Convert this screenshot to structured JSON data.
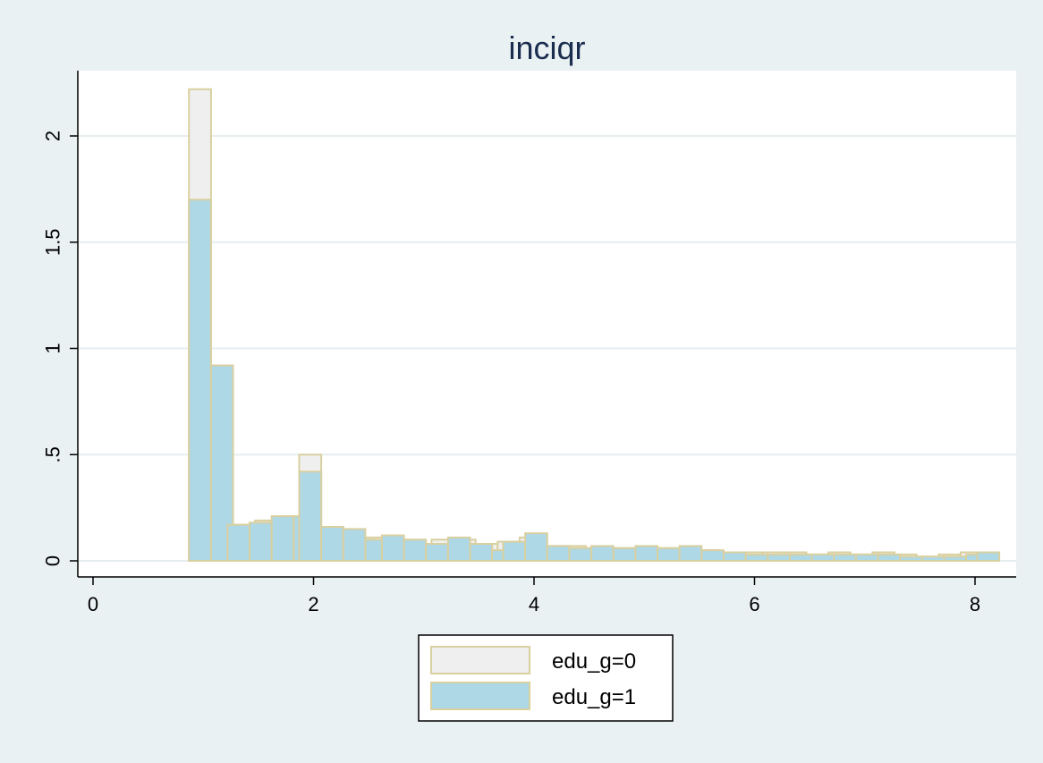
{
  "chart_data": {
    "type": "bar",
    "title": "inciqr",
    "xlabel": "",
    "ylabel": "",
    "xlim": [
      0,
      8.2
    ],
    "ylim": [
      0,
      2.22
    ],
    "x_ticks": [
      0,
      2,
      4,
      6,
      8
    ],
    "x_tick_labels": [
      "0",
      "2",
      "4",
      "6",
      "8"
    ],
    "y_ticks": [
      0,
      0.5,
      1,
      1.5,
      2
    ],
    "y_tick_labels": [
      "0",
      ".5",
      "1",
      "1.5",
      "2"
    ],
    "grid": "horizontal",
    "legend_position": "bottom",
    "bin_width": 0.2,
    "series": [
      {
        "name": "edu_g=0",
        "color": "#efefef",
        "edge_color": "#d9d0a0",
        "bins": [
          {
            "x0": 0.87,
            "value": 2.22
          },
          {
            "x0": 1.07,
            "value": 0.81
          },
          {
            "x0": 1.27,
            "value": 0.17
          },
          {
            "x0": 1.47,
            "value": 0.19
          },
          {
            "x0": 1.67,
            "value": 0.21
          },
          {
            "x0": 1.87,
            "value": 0.5
          },
          {
            "x0": 2.07,
            "value": 0.16
          },
          {
            "x0": 2.27,
            "value": 0.12
          },
          {
            "x0": 2.47,
            "value": 0.11
          },
          {
            "x0": 2.67,
            "value": 0.1
          },
          {
            "x0": 2.87,
            "value": 0.08
          },
          {
            "x0": 3.07,
            "value": 0.1
          },
          {
            "x0": 3.27,
            "value": 0.1
          },
          {
            "x0": 3.47,
            "value": 0.08
          },
          {
            "x0": 3.67,
            "value": 0.09
          },
          {
            "x0": 3.87,
            "value": 0.11
          },
          {
            "x0": 4.07,
            "value": 0.07
          },
          {
            "x0": 4.27,
            "value": 0.07
          },
          {
            "x0": 4.47,
            "value": 0.06
          },
          {
            "x0": 4.67,
            "value": 0.06
          },
          {
            "x0": 4.87,
            "value": 0.06
          },
          {
            "x0": 5.07,
            "value": 0.06
          },
          {
            "x0": 5.27,
            "value": 0.06
          },
          {
            "x0": 5.47,
            "value": 0.05
          },
          {
            "x0": 5.67,
            "value": 0.04
          },
          {
            "x0": 5.87,
            "value": 0.04
          },
          {
            "x0": 6.07,
            "value": 0.04
          },
          {
            "x0": 6.27,
            "value": 0.04
          },
          {
            "x0": 6.47,
            "value": 0.03
          },
          {
            "x0": 6.67,
            "value": 0.04
          },
          {
            "x0": 6.87,
            "value": 0.03
          },
          {
            "x0": 7.07,
            "value": 0.04
          },
          {
            "x0": 7.27,
            "value": 0.03
          },
          {
            "x0": 7.47,
            "value": 0.02
          },
          {
            "x0": 7.67,
            "value": 0.03
          },
          {
            "x0": 7.87,
            "value": 0.04
          }
        ]
      },
      {
        "name": "edu_g=1",
        "color": "#aed8e6",
        "edge_color": "#d9d0a0",
        "bins": [
          {
            "x0": 0.87,
            "value": 1.7
          },
          {
            "x0": 1.07,
            "value": 0.92
          },
          {
            "x0": 1.22,
            "value": 0.17
          },
          {
            "x0": 1.42,
            "value": 0.18
          },
          {
            "x0": 1.62,
            "value": 0.21
          },
          {
            "x0": 1.82,
            "value": 0.21
          },
          {
            "x0": 1.87,
            "value": 0.42
          },
          {
            "x0": 2.07,
            "value": 0.16
          },
          {
            "x0": 2.27,
            "value": 0.15
          },
          {
            "x0": 2.47,
            "value": 0.1
          },
          {
            "x0": 2.62,
            "value": 0.12
          },
          {
            "x0": 2.82,
            "value": 0.1
          },
          {
            "x0": 3.02,
            "value": 0.08
          },
          {
            "x0": 3.22,
            "value": 0.11
          },
          {
            "x0": 3.42,
            "value": 0.08
          },
          {
            "x0": 3.62,
            "value": 0.05
          },
          {
            "x0": 3.72,
            "value": 0.09
          },
          {
            "x0": 3.92,
            "value": 0.13
          },
          {
            "x0": 4.12,
            "value": 0.07
          },
          {
            "x0": 4.32,
            "value": 0.06
          },
          {
            "x0": 4.52,
            "value": 0.07
          },
          {
            "x0": 4.72,
            "value": 0.06
          },
          {
            "x0": 4.92,
            "value": 0.07
          },
          {
            "x0": 5.12,
            "value": 0.06
          },
          {
            "x0": 5.32,
            "value": 0.07
          },
          {
            "x0": 5.52,
            "value": 0.05
          },
          {
            "x0": 5.72,
            "value": 0.04
          },
          {
            "x0": 5.92,
            "value": 0.03
          },
          {
            "x0": 6.12,
            "value": 0.03
          },
          {
            "x0": 6.32,
            "value": 0.03
          },
          {
            "x0": 6.52,
            "value": 0.03
          },
          {
            "x0": 6.72,
            "value": 0.03
          },
          {
            "x0": 6.92,
            "value": 0.03
          },
          {
            "x0": 7.12,
            "value": 0.03
          },
          {
            "x0": 7.32,
            "value": 0.02
          },
          {
            "x0": 7.52,
            "value": 0.02
          },
          {
            "x0": 7.72,
            "value": 0.02
          },
          {
            "x0": 7.92,
            "value": 0.03
          },
          {
            "x0": 8.02,
            "value": 0.04
          }
        ]
      }
    ],
    "legend": [
      {
        "label": "edu_g=0",
        "color": "#efefef"
      },
      {
        "label": "edu_g=1",
        "color": "#aed8e6"
      }
    ]
  }
}
